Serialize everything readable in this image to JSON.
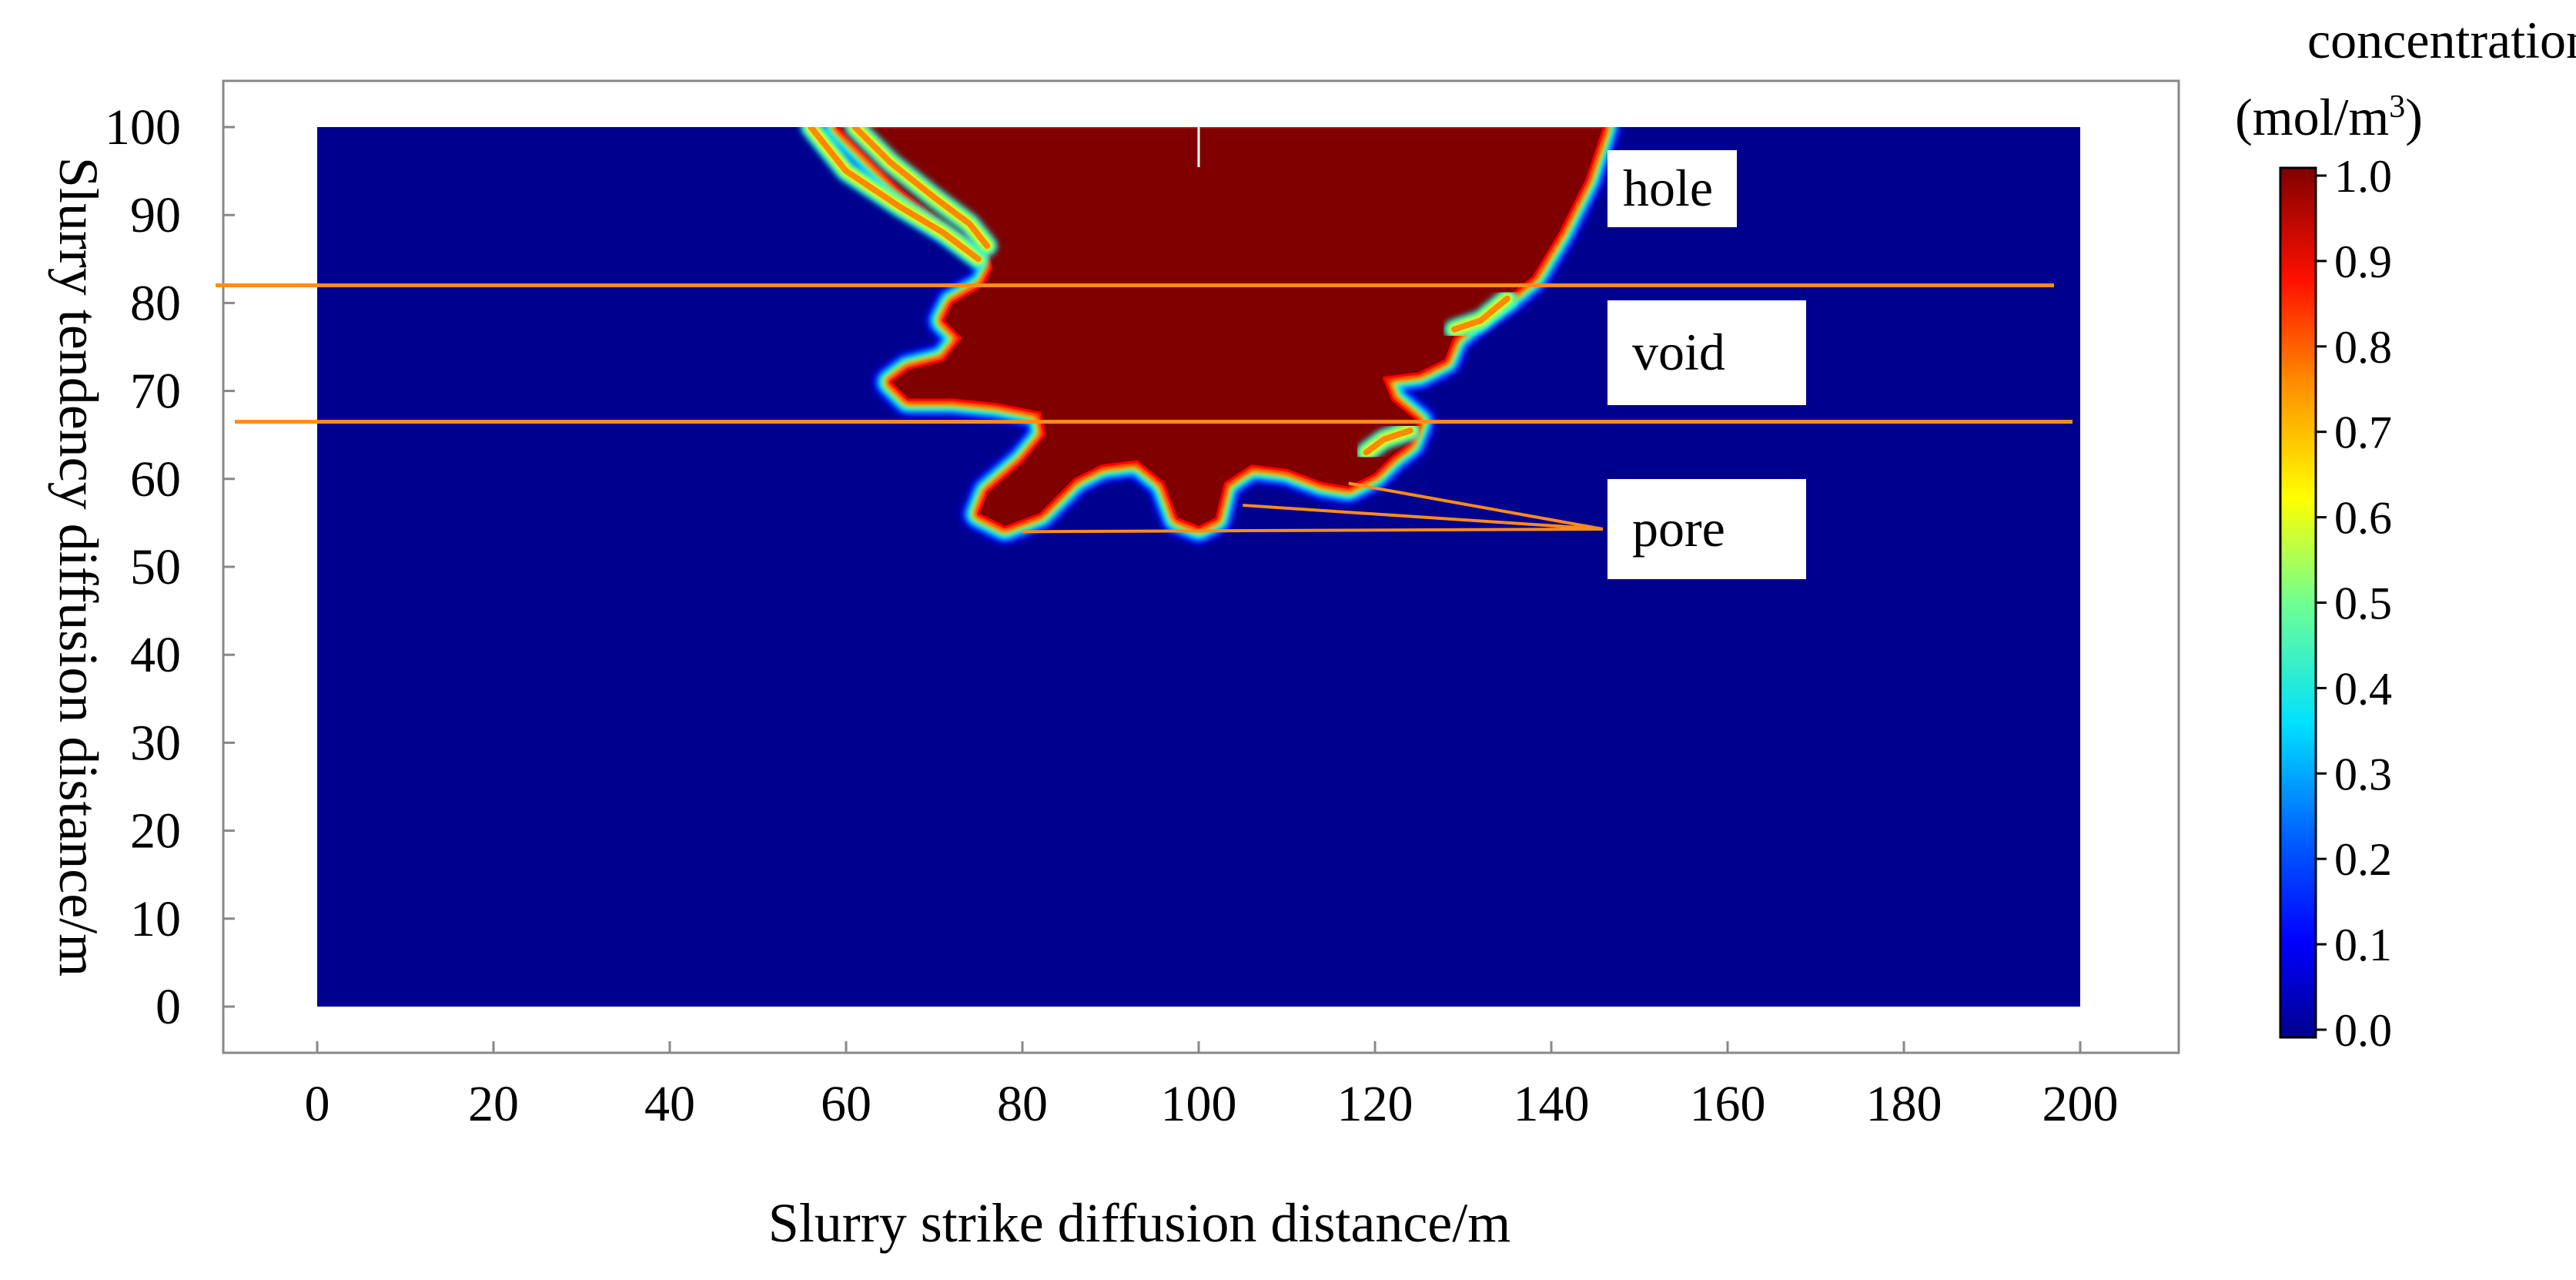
{
  "chart_data": {
    "type": "heatmap",
    "title": "",
    "xlabel": "Slurry strike diffusion distance/m",
    "ylabel": "Slurry tendency diffusion distance/m",
    "xlim": [
      0,
      200
    ],
    "ylim": [
      0,
      100
    ],
    "x_ticks": [
      "0",
      "20",
      "40",
      "60",
      "80",
      "100",
      "120",
      "140",
      "160",
      "180",
      "200"
    ],
    "y_ticks": [
      "0",
      "10",
      "20",
      "30",
      "40",
      "50",
      "60",
      "70",
      "80",
      "90",
      "100"
    ],
    "colorbar": {
      "title_line1": "concentration",
      "title_unit": "(mol/m",
      "title_sup": "3",
      "title_close": ")",
      "range": [
        0.0,
        1.0
      ],
      "ticks": [
        "0.0",
        "0.1",
        "0.2",
        "0.3",
        "0.4",
        "0.5",
        "0.6",
        "0.7",
        "0.8",
        "0.9",
        "1.0"
      ],
      "colormap": "jet",
      "low_color": "#00008f",
      "high_color": "#800000"
    },
    "background_value": 0.0,
    "saturated_value": 1.0,
    "front_boundary": [
      {
        "x": 59,
        "y": 100
      },
      {
        "x": 62,
        "y": 97
      },
      {
        "x": 66,
        "y": 93
      },
      {
        "x": 71,
        "y": 89
      },
      {
        "x": 76,
        "y": 86
      },
      {
        "x": 76.5,
        "y": 84
      },
      {
        "x": 75.5,
        "y": 82
      },
      {
        "x": 72,
        "y": 80
      },
      {
        "x": 71,
        "y": 78
      },
      {
        "x": 73,
        "y": 76
      },
      {
        "x": 71,
        "y": 73.5
      },
      {
        "x": 67,
        "y": 72.5
      },
      {
        "x": 65,
        "y": 71
      },
      {
        "x": 67,
        "y": 69
      },
      {
        "x": 72,
        "y": 69
      },
      {
        "x": 77,
        "y": 68.5
      },
      {
        "x": 82,
        "y": 67.5
      },
      {
        "x": 82.5,
        "y": 65
      },
      {
        "x": 80,
        "y": 62
      },
      {
        "x": 76,
        "y": 58.5
      },
      {
        "x": 75,
        "y": 56
      },
      {
        "x": 78,
        "y": 54.5
      },
      {
        "x": 82,
        "y": 56
      },
      {
        "x": 86,
        "y": 60
      },
      {
        "x": 89,
        "y": 61.5
      },
      {
        "x": 93,
        "y": 62
      },
      {
        "x": 96,
        "y": 59.5
      },
      {
        "x": 97.5,
        "y": 55.5
      },
      {
        "x": 100,
        "y": 54.5
      },
      {
        "x": 102,
        "y": 55.5
      },
      {
        "x": 103,
        "y": 59.5
      },
      {
        "x": 106,
        "y": 61.5
      },
      {
        "x": 110,
        "y": 61
      },
      {
        "x": 114,
        "y": 59.5
      },
      {
        "x": 117,
        "y": 59
      },
      {
        "x": 120,
        "y": 60.5
      },
      {
        "x": 122,
        "y": 62.5
      },
      {
        "x": 124,
        "y": 64
      },
      {
        "x": 125,
        "y": 66.5
      },
      {
        "x": 122,
        "y": 69
      },
      {
        "x": 121,
        "y": 71.5
      },
      {
        "x": 125,
        "y": 72
      },
      {
        "x": 128,
        "y": 73.5
      },
      {
        "x": 129,
        "y": 76
      },
      {
        "x": 132,
        "y": 78.5
      },
      {
        "x": 135,
        "y": 80.5
      },
      {
        "x": 138,
        "y": 83
      },
      {
        "x": 141,
        "y": 88
      },
      {
        "x": 144,
        "y": 94
      },
      {
        "x": 146,
        "y": 100
      }
    ],
    "partial_bands": [
      {
        "points": [
          {
            "x": 56,
            "y": 100
          },
          {
            "x": 60,
            "y": 95
          },
          {
            "x": 66,
            "y": 91
          },
          {
            "x": 71,
            "y": 88
          },
          {
            "x": 75,
            "y": 85
          }
        ],
        "value": 0.75
      },
      {
        "points": [
          {
            "x": 61,
            "y": 100
          },
          {
            "x": 65,
            "y": 96
          },
          {
            "x": 70,
            "y": 92
          },
          {
            "x": 74,
            "y": 89
          },
          {
            "x": 76,
            "y": 86.5
          }
        ],
        "value": 0.75
      },
      {
        "points": [
          {
            "x": 129,
            "y": 77
          },
          {
            "x": 132,
            "y": 78
          },
          {
            "x": 135,
            "y": 80.5
          }
        ],
        "value": 0.7
      },
      {
        "points": [
          {
            "x": 119,
            "y": 63
          },
          {
            "x": 121,
            "y": 64.5
          },
          {
            "x": 124,
            "y": 65.5
          }
        ],
        "value": 0.7
      }
    ],
    "horizontal_lines": [
      {
        "y": 82,
        "label": "hole"
      },
      {
        "y": 66.5,
        "label": "void"
      }
    ],
    "annotations": [
      {
        "text": "hole"
      },
      {
        "text": "void"
      },
      {
        "text": "pore",
        "leader_targets": [
          {
            "x": 80,
            "y": 54
          },
          {
            "x": 105,
            "y": 57
          },
          {
            "x": 117,
            "y": 59.5
          }
        ]
      }
    ],
    "line_color": "#ff8c1a"
  }
}
